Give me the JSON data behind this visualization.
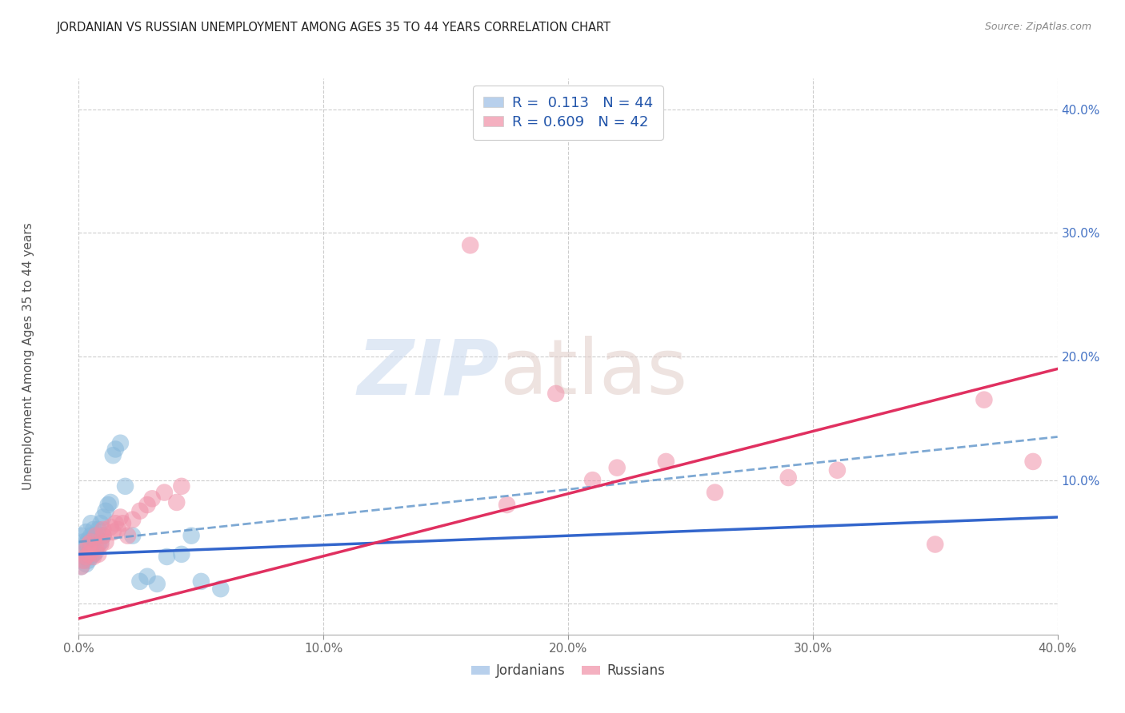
{
  "title": "JORDANIAN VS RUSSIAN UNEMPLOYMENT AMONG AGES 35 TO 44 YEARS CORRELATION CHART",
  "source": "Source: ZipAtlas.com",
  "ylabel": "Unemployment Among Ages 35 to 44 years",
  "xlim": [
    0.0,
    0.4
  ],
  "ylim": [
    -0.025,
    0.425
  ],
  "blue_color": "#88b8dc",
  "pink_color": "#f090a8",
  "blue_line_color": "#3366cc",
  "pink_line_color": "#e03060",
  "blue_dash_color": "#6699cc",
  "grid_color": "#c8c8c8",
  "background_color": "#ffffff",
  "legend_blue_box": "#b8d0ec",
  "legend_pink_box": "#f4b0c0",
  "legend_blue_label": "R =  0.113   N = 44",
  "legend_pink_label": "R = 0.609   N = 42",
  "bottom_label_jord": "Jordanians",
  "bottom_label_russ": "Russians",
  "blue_line_x0": 0.0,
  "blue_line_y0": 0.04,
  "blue_line_x1": 0.4,
  "blue_line_y1": 0.07,
  "pink_line_x0": 0.0,
  "pink_line_y0": -0.012,
  "pink_line_x1": 0.4,
  "pink_line_y1": 0.19,
  "dash_line_x0": 0.0,
  "dash_line_y0": 0.05,
  "dash_line_x1": 0.4,
  "dash_line_y1": 0.135,
  "jord_x": [
    0.001,
    0.001,
    0.001,
    0.002,
    0.002,
    0.002,
    0.003,
    0.003,
    0.003,
    0.003,
    0.004,
    0.004,
    0.004,
    0.005,
    0.005,
    0.005,
    0.005,
    0.006,
    0.006,
    0.006,
    0.007,
    0.007,
    0.008,
    0.008,
    0.009,
    0.009,
    0.01,
    0.01,
    0.011,
    0.012,
    0.013,
    0.014,
    0.015,
    0.017,
    0.019,
    0.022,
    0.025,
    0.028,
    0.032,
    0.036,
    0.042,
    0.046,
    0.05,
    0.058
  ],
  "jord_y": [
    0.03,
    0.04,
    0.055,
    0.035,
    0.045,
    0.05,
    0.032,
    0.038,
    0.048,
    0.058,
    0.035,
    0.042,
    0.052,
    0.038,
    0.045,
    0.055,
    0.065,
    0.04,
    0.05,
    0.06,
    0.042,
    0.055,
    0.048,
    0.06,
    0.05,
    0.065,
    0.055,
    0.07,
    0.075,
    0.08,
    0.082,
    0.12,
    0.125,
    0.13,
    0.095,
    0.055,
    0.018,
    0.022,
    0.016,
    0.038,
    0.04,
    0.055,
    0.018,
    0.012
  ],
  "russ_x": [
    0.001,
    0.002,
    0.002,
    0.003,
    0.004,
    0.004,
    0.005,
    0.005,
    0.006,
    0.007,
    0.007,
    0.008,
    0.009,
    0.01,
    0.01,
    0.011,
    0.013,
    0.014,
    0.015,
    0.016,
    0.017,
    0.018,
    0.02,
    0.022,
    0.025,
    0.028,
    0.03,
    0.035,
    0.04,
    0.042,
    0.16,
    0.175,
    0.195,
    0.21,
    0.22,
    0.24,
    0.26,
    0.29,
    0.31,
    0.35,
    0.37,
    0.39
  ],
  "russ_y": [
    0.03,
    0.035,
    0.042,
    0.038,
    0.04,
    0.048,
    0.042,
    0.05,
    0.038,
    0.045,
    0.055,
    0.04,
    0.048,
    0.055,
    0.06,
    0.05,
    0.062,
    0.058,
    0.065,
    0.06,
    0.07,
    0.065,
    0.055,
    0.068,
    0.075,
    0.08,
    0.085,
    0.09,
    0.082,
    0.095,
    0.29,
    0.08,
    0.17,
    0.1,
    0.11,
    0.115,
    0.09,
    0.102,
    0.108,
    0.048,
    0.165,
    0.115
  ]
}
